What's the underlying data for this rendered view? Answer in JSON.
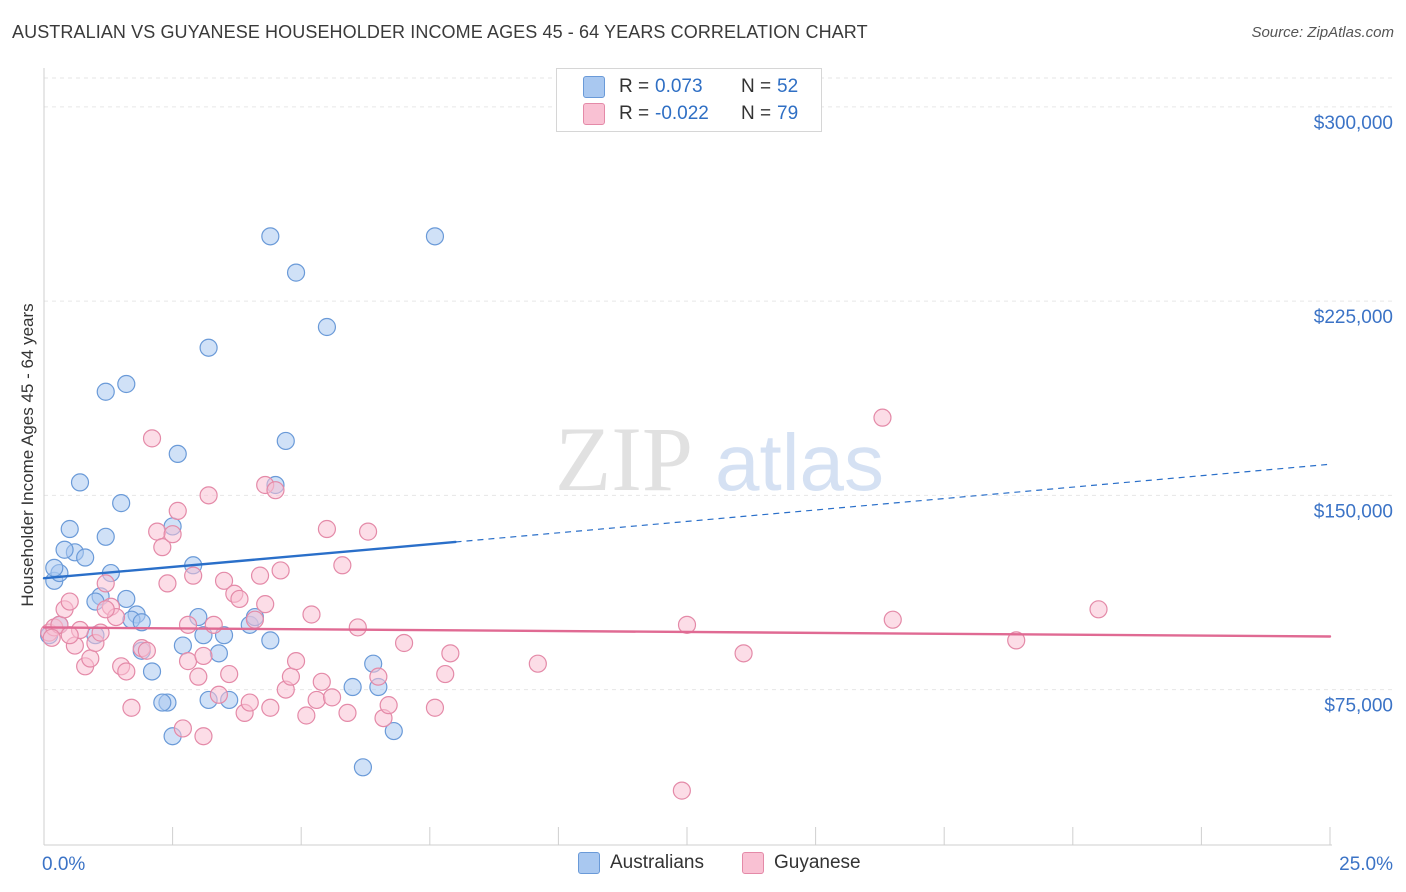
{
  "title": "AUSTRALIAN VS GUYANESE HOUSEHOLDER INCOME AGES 45 - 64 YEARS CORRELATION CHART",
  "source": "Source: ZipAtlas.com",
  "watermark": {
    "zip": "ZIP",
    "atlas": "atlas"
  },
  "legend": {
    "rows": [
      {
        "r_label": "R =",
        "r_value": "0.073",
        "n_label": "N =",
        "n_value": "52",
        "color": "#a9c8f0",
        "border": "#6a9ad8"
      },
      {
        "r_label": "R =",
        "r_value": "-0.022",
        "n_label": "N =",
        "n_value": "79",
        "color": "#f9c1d3",
        "border": "#e48aa8"
      }
    ]
  },
  "bottom_legend": [
    {
      "label": "Australians",
      "color": "#a9c8f0",
      "border": "#6a9ad8"
    },
    {
      "label": "Guyanese",
      "color": "#f9c1d3",
      "border": "#e48aa8"
    }
  ],
  "chart_data": {
    "type": "scatter",
    "title": "AUSTRALIAN VS GUYANESE HOUSEHOLDER INCOME AGES 45 - 64 YEARS CORRELATION CHART",
    "xlabel": "",
    "ylabel": "Householder Income Ages 45 - 64 years",
    "xlim": [
      0,
      25
    ],
    "ylim": [
      15000,
      315000
    ],
    "x_tick_labels": [
      {
        "value": 0,
        "label": "0.0%"
      },
      {
        "value": 25,
        "label": "25.0%"
      }
    ],
    "y_ticks": [
      {
        "value": 75000,
        "label": "$75,000"
      },
      {
        "value": 150000,
        "label": "$150,000"
      },
      {
        "value": 225000,
        "label": "$225,000"
      },
      {
        "value": 300000,
        "label": "$300,000"
      }
    ],
    "grid": true,
    "series": [
      {
        "name": "Australians",
        "color": "#a9c8f0",
        "stroke": "#6a9ad8",
        "trend_color": "#2a6fc9",
        "trend": {
          "x0": 0,
          "y0": 118000,
          "x1": 8.0,
          "y1": 132000,
          "x_dash_end": 25,
          "y_dash_end": 162000
        },
        "points": [
          [
            0.2,
            117000
          ],
          [
            0.3,
            120000
          ],
          [
            0.5,
            137000
          ],
          [
            0.6,
            128000
          ],
          [
            0.8,
            126000
          ],
          [
            0.7,
            155000
          ],
          [
            0.4,
            129000
          ],
          [
            1.2,
            134000
          ],
          [
            1.1,
            111000
          ],
          [
            1.0,
            109000
          ],
          [
            1.3,
            120000
          ],
          [
            1.5,
            147000
          ],
          [
            1.8,
            104000
          ],
          [
            1.7,
            102000
          ],
          [
            1.6,
            110000
          ],
          [
            1.2,
            190000
          ],
          [
            1.6,
            193000
          ],
          [
            2.6,
            166000
          ],
          [
            2.5,
            138000
          ],
          [
            2.9,
            123000
          ],
          [
            3.0,
            103000
          ],
          [
            2.7,
            92000
          ],
          [
            3.1,
            96000
          ],
          [
            3.4,
            89000
          ],
          [
            3.5,
            96000
          ],
          [
            3.2,
            71000
          ],
          [
            3.6,
            71000
          ],
          [
            2.4,
            70000
          ],
          [
            2.3,
            70000
          ],
          [
            2.5,
            57000
          ],
          [
            2.1,
            82000
          ],
          [
            1.9,
            101000
          ],
          [
            4.0,
            100000
          ],
          [
            4.1,
            103000
          ],
          [
            4.4,
            94000
          ],
          [
            4.5,
            154000
          ],
          [
            4.7,
            171000
          ],
          [
            4.4,
            250000
          ],
          [
            4.9,
            236000
          ],
          [
            3.2,
            207000
          ],
          [
            5.5,
            215000
          ],
          [
            6.0,
            76000
          ],
          [
            6.4,
            85000
          ],
          [
            6.5,
            76000
          ],
          [
            6.8,
            59000
          ],
          [
            6.2,
            45000
          ],
          [
            7.6,
            250000
          ],
          [
            0.2,
            122000
          ],
          [
            0.3,
            100000
          ],
          [
            1.0,
            96000
          ],
          [
            1.9,
            90000
          ],
          [
            0.1,
            96000
          ]
        ]
      },
      {
        "name": "Guyanese",
        "color": "#f9c1d3",
        "stroke": "#e48aa8",
        "trend_color": "#e06a93",
        "trend": {
          "x0": 0,
          "y0": 99000,
          "x1": 25,
          "y1": 95500
        },
        "points": [
          [
            0.1,
            97000
          ],
          [
            0.2,
            99000
          ],
          [
            0.3,
            100000
          ],
          [
            0.4,
            106000
          ],
          [
            0.5,
            109000
          ],
          [
            0.6,
            92000
          ],
          [
            0.7,
            98000
          ],
          [
            0.8,
            84000
          ],
          [
            0.9,
            87000
          ],
          [
            1.0,
            93000
          ],
          [
            1.1,
            97000
          ],
          [
            1.2,
            116000
          ],
          [
            1.3,
            107000
          ],
          [
            1.4,
            103000
          ],
          [
            1.5,
            84000
          ],
          [
            1.6,
            82000
          ],
          [
            1.7,
            68000
          ],
          [
            1.9,
            91000
          ],
          [
            2.0,
            90000
          ],
          [
            2.1,
            172000
          ],
          [
            2.2,
            136000
          ],
          [
            2.3,
            130000
          ],
          [
            2.4,
            116000
          ],
          [
            2.5,
            135000
          ],
          [
            2.6,
            144000
          ],
          [
            2.7,
            60000
          ],
          [
            2.8,
            86000
          ],
          [
            2.9,
            119000
          ],
          [
            3.0,
            80000
          ],
          [
            3.1,
            57000
          ],
          [
            3.2,
            150000
          ],
          [
            3.3,
            100000
          ],
          [
            3.4,
            73000
          ],
          [
            3.5,
            117000
          ],
          [
            3.6,
            81000
          ],
          [
            3.7,
            112000
          ],
          [
            3.8,
            110000
          ],
          [
            3.9,
            66000
          ],
          [
            4.0,
            70000
          ],
          [
            4.1,
            102000
          ],
          [
            4.2,
            119000
          ],
          [
            4.3,
            154000
          ],
          [
            4.4,
            68000
          ],
          [
            4.5,
            152000
          ],
          [
            4.6,
            121000
          ],
          [
            4.7,
            75000
          ],
          [
            4.8,
            80000
          ],
          [
            4.9,
            86000
          ],
          [
            5.2,
            104000
          ],
          [
            5.3,
            71000
          ],
          [
            5.4,
            78000
          ],
          [
            5.5,
            137000
          ],
          [
            5.6,
            72000
          ],
          [
            5.8,
            123000
          ],
          [
            5.9,
            66000
          ],
          [
            6.1,
            99000
          ],
          [
            6.3,
            136000
          ],
          [
            6.5,
            80000
          ],
          [
            6.6,
            64000
          ],
          [
            6.7,
            69000
          ],
          [
            7.0,
            93000
          ],
          [
            7.6,
            68000
          ],
          [
            7.8,
            81000
          ],
          [
            7.9,
            89000
          ],
          [
            9.6,
            85000
          ],
          [
            12.5,
            100000
          ],
          [
            12.4,
            36000
          ],
          [
            13.6,
            89000
          ],
          [
            16.3,
            180000
          ],
          [
            16.5,
            102000
          ],
          [
            18.9,
            94000
          ],
          [
            20.5,
            106000
          ],
          [
            0.15,
            95000
          ],
          [
            0.5,
            96000
          ],
          [
            1.2,
            106000
          ],
          [
            2.8,
            100000
          ],
          [
            4.3,
            108000
          ],
          [
            5.1,
            65000
          ],
          [
            3.1,
            88000
          ]
        ]
      }
    ]
  }
}
